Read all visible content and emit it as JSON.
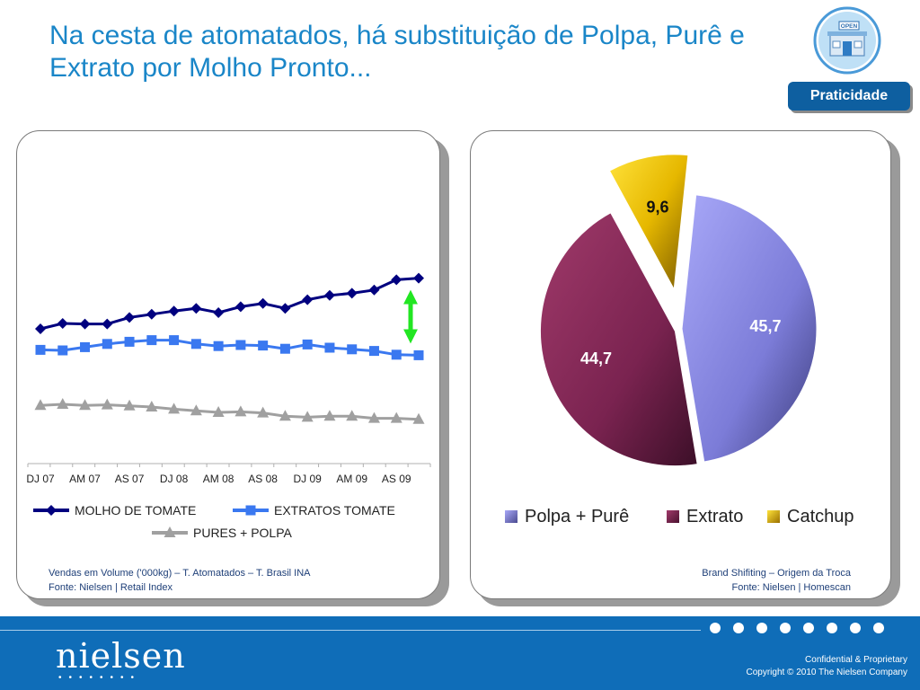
{
  "slide": {
    "title": "Na cesta de atomatados, há substituição de Polpa, Purê e Extrato por Molho Pronto...",
    "badge_label": "Praticidade",
    "badge_icon": "store-open-icon",
    "badge_sign_text": "OPEN"
  },
  "left_panel": {
    "source_line1": "Vendas em Volume ('000kg) – T. Atomatados – T. Brasil INA",
    "source_line2": "Fonte: Nielsen | Retail Index"
  },
  "right_panel": {
    "source_line1": "Brand Shifiting – Origem da Troca",
    "source_line2": "Fonte: Nielsen | Homescan"
  },
  "footer": {
    "logo": "nielsen",
    "confidential": "Confidential & Proprietary",
    "copyright": "Copyright © 2010 The Nielsen Company"
  },
  "colors": {
    "title": "#1a86c8",
    "footer": "#0f6db8",
    "badge": "#0e5fa0",
    "molho": "#00007f",
    "extratos": "#3a78f0",
    "pures": "#a0a0a0",
    "arrow": "#22e622"
  },
  "chart_data": [
    {
      "type": "line",
      "x_tick_labels": [
        "DJ 07",
        "AM 07",
        "AS 07",
        "DJ 08",
        "AM 08",
        "AS 08",
        "DJ 09",
        "AM 09",
        "AS 09"
      ],
      "point_count": 18,
      "y_axis_visible": false,
      "grid": false,
      "legend_position": "bottom",
      "series": [
        {
          "name": "MOLHO DE TOMATE",
          "marker": "diamond",
          "color": "#00007f",
          "values": [
            180,
            190,
            189,
            189,
            201,
            207,
            213,
            218,
            210,
            221,
            227,
            218,
            234,
            242,
            246,
            252,
            271,
            274
          ]
        },
        {
          "name": "EXTRATOS TOMATE",
          "marker": "square",
          "color": "#3a78f0",
          "values": [
            141,
            140,
            146,
            152,
            156,
            159,
            159,
            152,
            148,
            150,
            149,
            143,
            151,
            145,
            142,
            139,
            132,
            131
          ]
        },
        {
          "name": "PURES + POLPA",
          "marker": "triangle",
          "color": "#a0a0a0",
          "values": [
            38,
            40,
            38,
            39,
            37,
            35,
            31,
            28,
            25,
            26,
            24,
            18,
            16,
            18,
            18,
            14,
            14,
            12
          ]
        }
      ],
      "annotation": {
        "type": "double-arrow",
        "between_series": [
          "MOLHO DE TOMATE",
          "EXTRATOS TOMATE"
        ],
        "at_point": 17,
        "color": "#22e622"
      }
    },
    {
      "type": "pie",
      "style": "3d-exploded",
      "legend_position": "bottom",
      "slices": [
        {
          "label": "Polpa + Purê",
          "value": 45.7,
          "value_text": "45,7",
          "color": "#8a8ae8"
        },
        {
          "label": "Extrato",
          "value": 44.7,
          "value_text": "44,7",
          "color": "#8c2a5c"
        },
        {
          "label": "Catchup",
          "value": 9.6,
          "value_text": "9,6",
          "color": "#e8c000"
        }
      ]
    }
  ]
}
